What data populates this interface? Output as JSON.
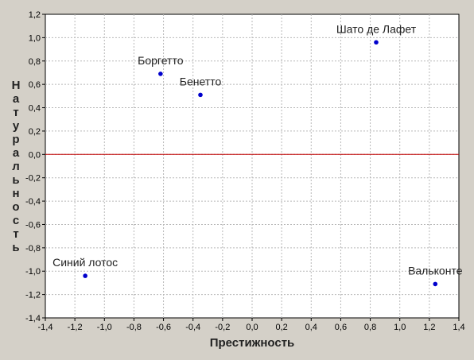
{
  "chart_data": {
    "type": "scatter",
    "title": "",
    "xlabel": "Престижность",
    "ylabel": "Натуральность",
    "xlim": [
      -1.4,
      1.4
    ],
    "ylim": [
      -1.4,
      1.2
    ],
    "x_ticks": [
      -1.4,
      -1.2,
      -1.0,
      -0.8,
      -0.6,
      -0.4,
      -0.2,
      0.0,
      0.2,
      0.4,
      0.6,
      0.8,
      1.0,
      1.2,
      1.4
    ],
    "y_ticks": [
      1.2,
      1.0,
      0.8,
      0.6,
      0.4,
      0.2,
      0.0,
      -0.2,
      -0.4,
      -0.6,
      -0.8,
      -1.0,
      -1.2,
      -1.4
    ],
    "x_tick_labels": [
      "-1,4",
      "-1,2",
      "-1,0",
      "-0,8",
      "-0,6",
      "-0,4",
      "-0,2",
      "0,0",
      "0,2",
      "0,4",
      "0,6",
      "0,8",
      "1,0",
      "1,2",
      "1,4"
    ],
    "y_tick_labels": [
      "1,2",
      "1,0",
      "0,8",
      "0,6",
      "0,4",
      "0,2",
      "0,0",
      "-0,2",
      "-0,4",
      "-0,6",
      "-0,8",
      "-1,0",
      "-1,2",
      "-1,4"
    ],
    "grid": true,
    "reference_line": {
      "y": 0.0,
      "color": "#c00000"
    },
    "point_color": "#0000cc",
    "points": [
      {
        "label": "Шато де Лафет",
        "x": 0.84,
        "y": 0.96
      },
      {
        "label": "Боргетто",
        "x": -0.62,
        "y": 0.69
      },
      {
        "label": "Бенетто",
        "x": -0.35,
        "y": 0.51
      },
      {
        "label": "Синий лотос",
        "x": -1.13,
        "y": -1.04
      },
      {
        "label": "Вальконте",
        "x": 1.24,
        "y": -1.11
      }
    ]
  }
}
